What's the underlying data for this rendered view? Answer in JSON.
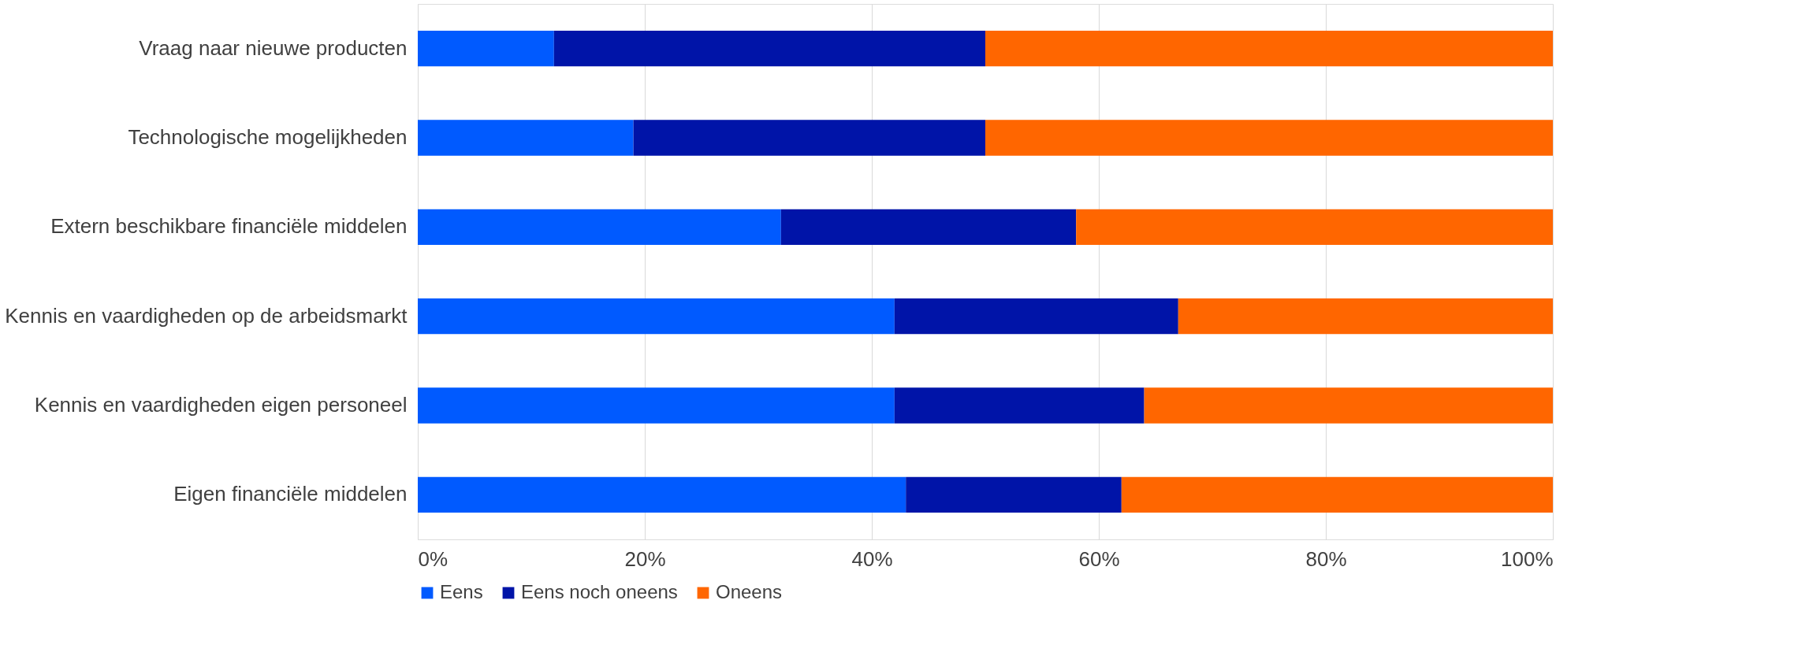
{
  "chart_data": {
    "type": "bar",
    "orientation": "horizontal",
    "stacked": true,
    "categories": [
      "Vraag naar nieuwe producten",
      "Technologische mogelijkheden",
      "Extern beschikbare financiële middelen",
      "Kennis en vaardigheden op de arbeidsmarkt",
      "Kennis en vaardigheden eigen personeel",
      "Eigen financiële middelen"
    ],
    "series": [
      {
        "name": "Eens",
        "color": "#005aff",
        "values": [
          12,
          19,
          32,
          42,
          42,
          43
        ]
      },
      {
        "name": "Eens noch oneens",
        "color": "#0014a8",
        "values": [
          38,
          31,
          26,
          25,
          22,
          19
        ]
      },
      {
        "name": "Oneens",
        "color": "#ff6600",
        "values": [
          50,
          50,
          42,
          33,
          36,
          38
        ]
      }
    ],
    "xlim": [
      0,
      100
    ],
    "xticks": [
      {
        "value": 0,
        "label": "0%"
      },
      {
        "value": 20,
        "label": "20%"
      },
      {
        "value": 40,
        "label": "40%"
      },
      {
        "value": 60,
        "label": "60%"
      },
      {
        "value": 80,
        "label": "80%"
      },
      {
        "value": 100,
        "label": "100%"
      }
    ],
    "grid": "x",
    "legend": "bottom"
  }
}
